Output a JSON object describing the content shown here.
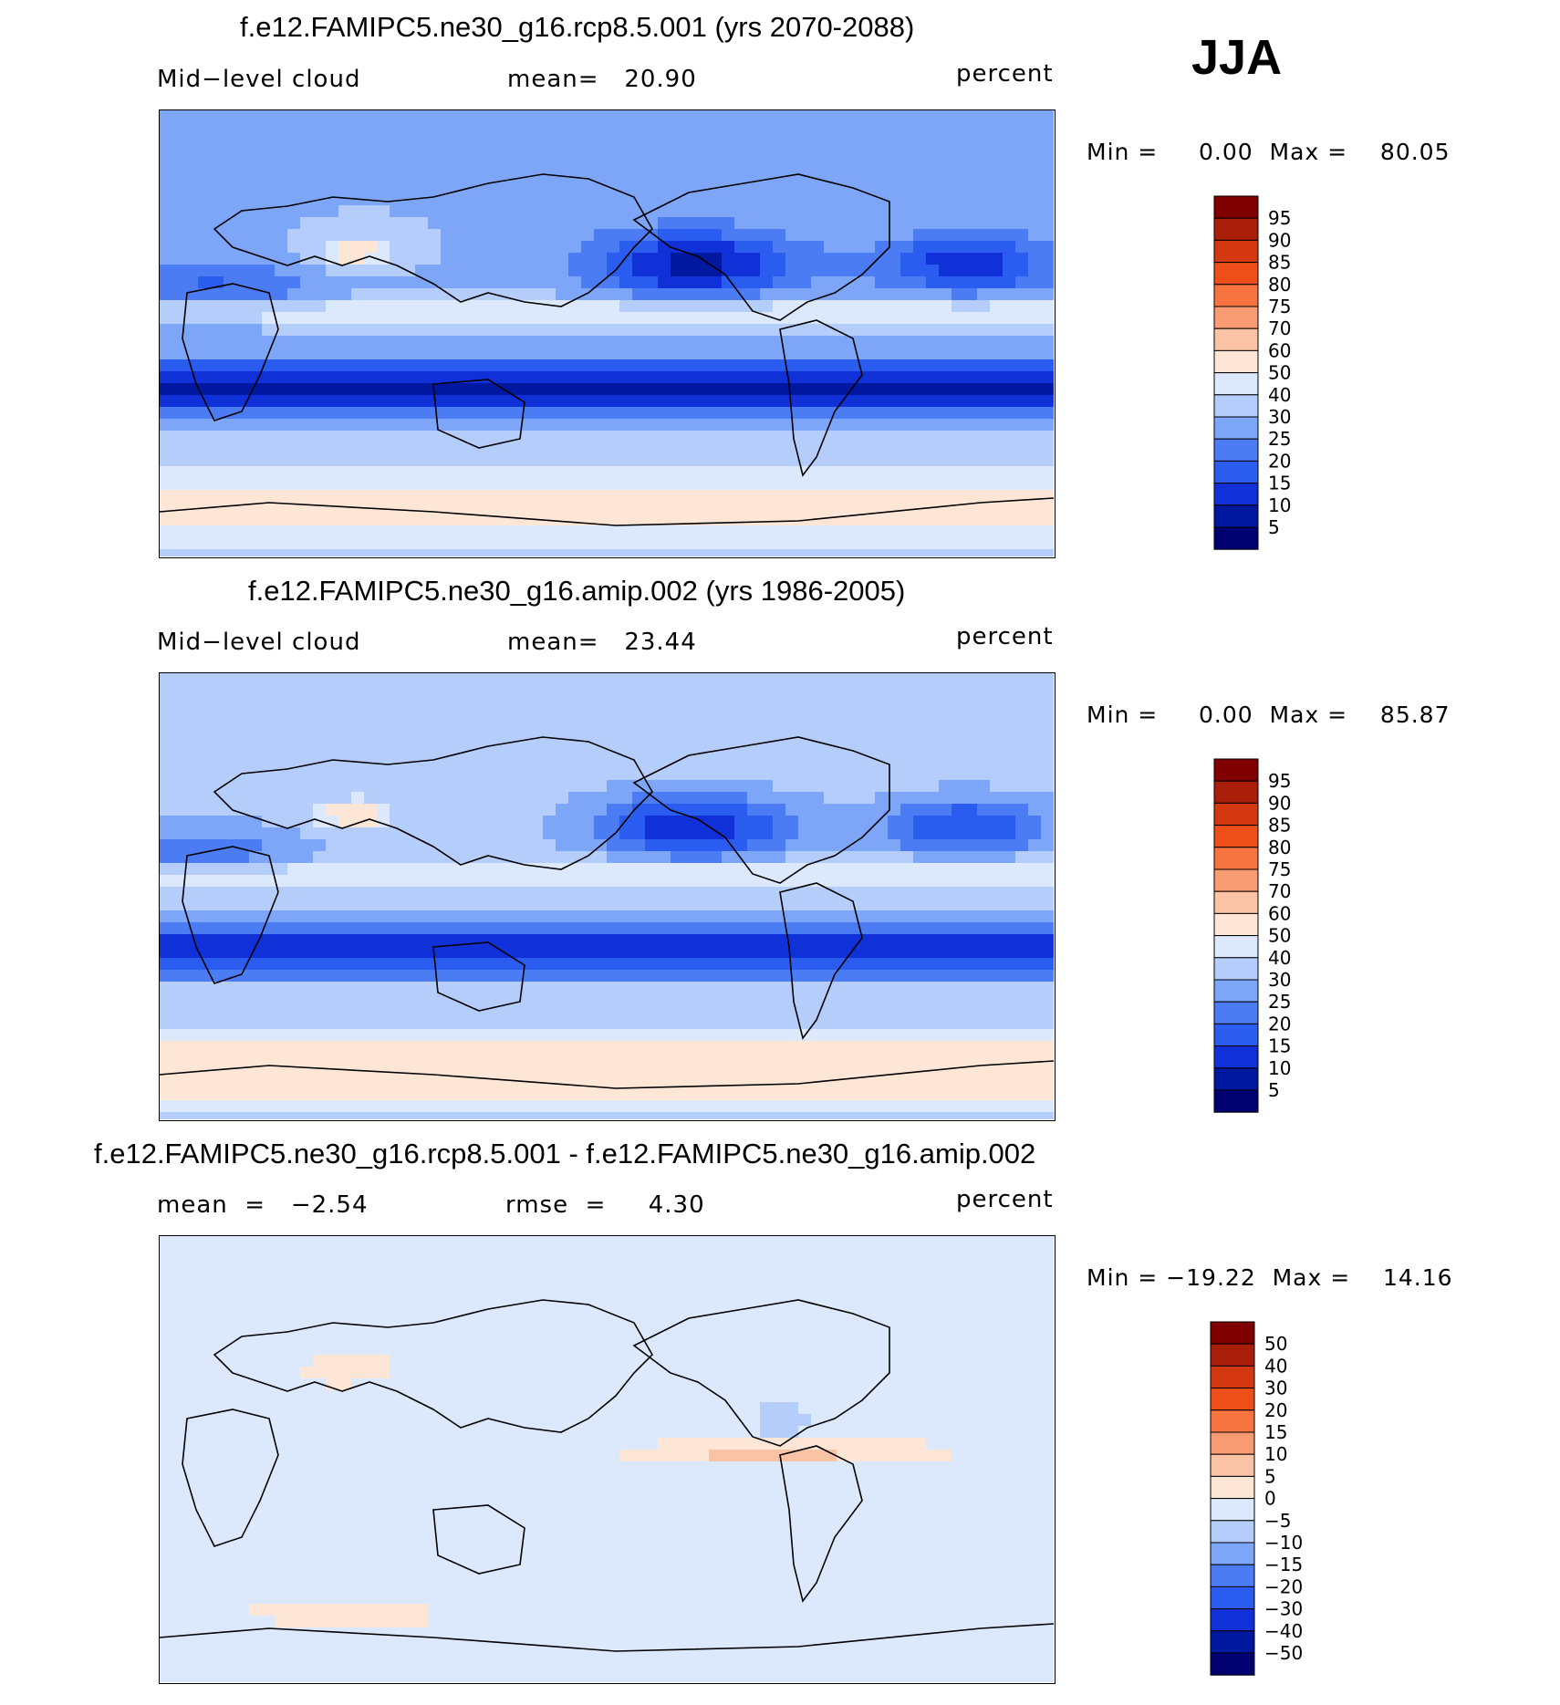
{
  "season": "JJA",
  "palettes": {
    "abs": [
      "#000070",
      "#0018a0",
      "#1030d8",
      "#2a5cf0",
      "#4c7cf4",
      "#7ea6f8",
      "#b4cdfb",
      "#dce9fc",
      "#fde6d6",
      "#fbc3a6",
      "#f89a72",
      "#f77440",
      "#ee4f18",
      "#d43810",
      "#a81e08",
      "#800000"
    ],
    "diff": [
      "#000070",
      "#0018a0",
      "#1030d8",
      "#2a5cf0",
      "#4c7cf4",
      "#7ea6f8",
      "#b4cdfb",
      "#dce9fc",
      "#fde6d6",
      "#fbc3a6",
      "#f89a72",
      "#f77440",
      "#ee4f18",
      "#d43810",
      "#a81e08",
      "#800000"
    ]
  },
  "panels": [
    {
      "title": "f.e12.FAMIPC5.ne30_g16.rcp8.5.001 (yrs 2070-2088)",
      "left": "Mid−level cloud",
      "center": "mean=   20.90",
      "units": "percent",
      "minmax": "Min =     0.00  Max =    80.05",
      "legend": [
        "95",
        "90",
        "85",
        "80",
        "75",
        "70",
        "60",
        "50",
        "40",
        "30",
        "25",
        "20",
        "15",
        "10",
        "5"
      ],
      "palette": "abs",
      "field": "a"
    },
    {
      "title": "f.e12.FAMIPC5.ne30_g16.amip.002 (yrs 1986-2005)",
      "left": "Mid−level cloud",
      "center": "mean=   23.44",
      "units": "percent",
      "minmax": "Min =     0.00  Max =    85.87",
      "legend": [
        "95",
        "90",
        "85",
        "80",
        "75",
        "70",
        "60",
        "50",
        "40",
        "30",
        "25",
        "20",
        "15",
        "10",
        "5"
      ],
      "palette": "abs",
      "field": "b"
    },
    {
      "title": "f.e12.FAMIPC5.ne30_g16.rcp8.5.001 - f.e12.FAMIPC5.ne30_g16.amip.002",
      "left": "mean  =   −2.54",
      "center": "rmse  =     4.30",
      "units": "percent",
      "minmax": "Min = −19.22  Max =    14.16",
      "legend": [
        "50",
        "40",
        "30",
        "20",
        "15",
        "10",
        "5",
        "0",
        "−5",
        "−10",
        "−15",
        "−20",
        "−30",
        "−40",
        "−50"
      ],
      "palette": "diff",
      "field": "diff"
    }
  ]
}
